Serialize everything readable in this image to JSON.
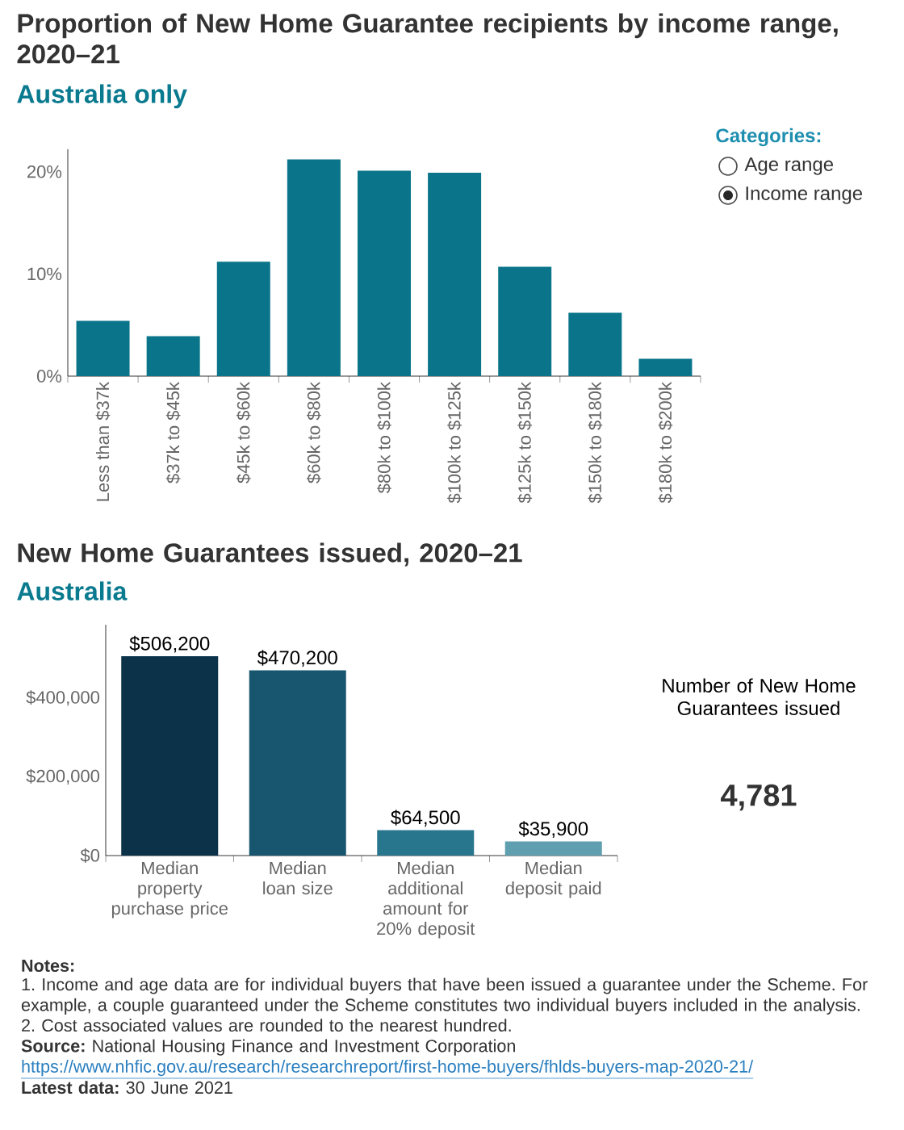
{
  "chart_data": [
    {
      "type": "bar",
      "title": "Proportion of New Home Guarantee recipients by income range, 2020–21",
      "subtitle": "Australia only",
      "categories": [
        "Less than $37k",
        "$37k to $45k",
        "$45k to $60k",
        "$60k to $80k",
        "$80k to $100k",
        "$100k to $125k",
        "$125k to $150k",
        "$150k to $180k",
        "$180k to $200k"
      ],
      "values": [
        5.4,
        3.9,
        11.2,
        21.2,
        20.1,
        19.9,
        10.7,
        6.2,
        1.7
      ],
      "color": "#0a758a",
      "ylim": [
        0,
        22.2
      ],
      "yticks": [
        {
          "value": 0,
          "label": "0%"
        },
        {
          "value": 10,
          "label": "10%"
        },
        {
          "value": 20,
          "label": "20%"
        }
      ],
      "annotations": [
        "Categories:",
        "Age range",
        "Income range"
      ]
    },
    {
      "type": "bar",
      "title": "New Home Guarantees issued, 2020–21",
      "subtitle": "Australia",
      "categories": [
        "Median property purchase price",
        "Median loan size",
        "Median additional amount for 20% deposit",
        "Median deposit paid"
      ],
      "values": [
        506200,
        470200,
        64500,
        35900
      ],
      "colors": [
        "#0b3249",
        "#185670",
        "#28758e",
        "#5f9fb0"
      ],
      "value_labels": [
        "$506,200",
        "$470,200",
        "$64,500",
        "$35,900"
      ],
      "ylim": [
        0,
        586000
      ],
      "yticks": [
        {
          "value": 0,
          "label": "$0"
        },
        {
          "value": 200000,
          "label": "$200,000"
        },
        {
          "value": 400000,
          "label": "$400,000"
        }
      ],
      "annotations": [
        "Notes:",
        "1. Income and age data are for individual buyers that have been issued a guarantee under the Scheme. For example, a couple guaranteed under the Scheme constitutes two individual buyers included in the analysis.",
        "2. Cost associated values are rounded to the nearest hundred.",
        "**Source:** National Housing Finance and Investment Corporation",
        "https://www.nhfic.gov.au/research/researchreport/first-home-buyers/fhlds-buyers-map-2020-21/",
        "**Latest data:** 30 June 2021"
      ]
    },
    {
      "type": "other",
      "title": "Number of New Home Guarantees issued",
      "annotations": [
        "4,781"
      ]
    }
  ]
}
